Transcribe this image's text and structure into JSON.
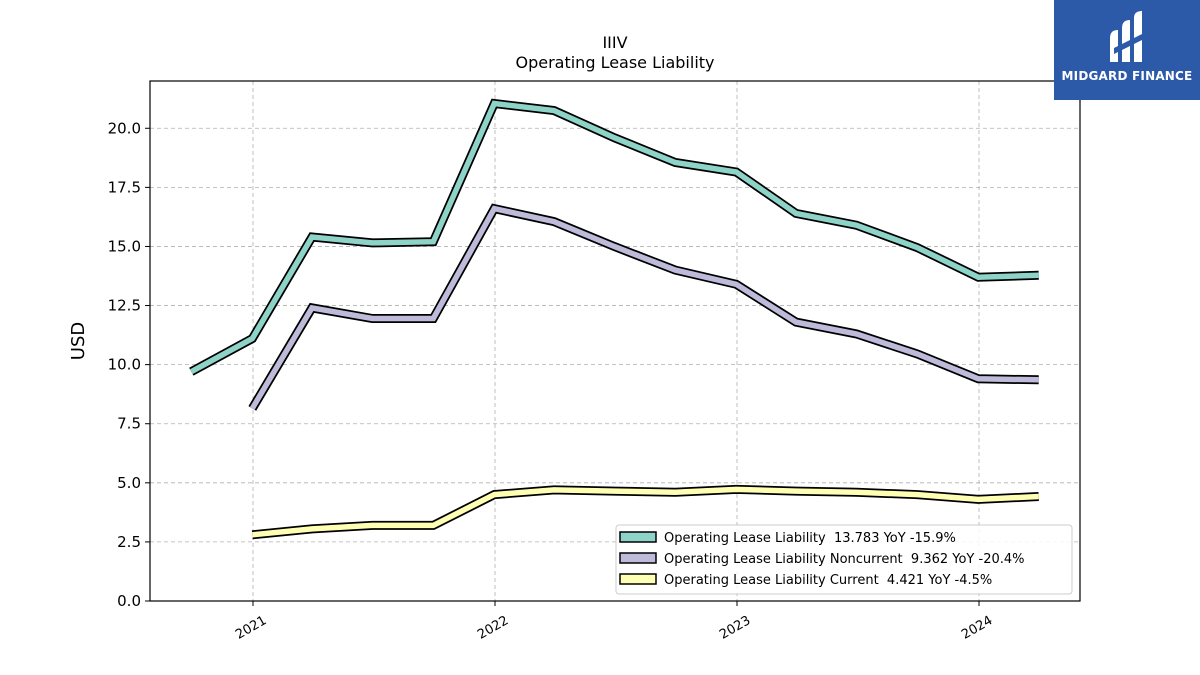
{
  "chart_data": {
    "type": "line",
    "title": "IIIV",
    "subtitle": "Operating Lease Liability",
    "ylabel": "USD",
    "xlabel": "",
    "ylim": [
      0,
      22
    ],
    "yticks": [
      "0.0",
      "2.5",
      "5.0",
      "7.5",
      "10.0",
      "12.5",
      "15.0",
      "17.5",
      "20.0"
    ],
    "xticks": [
      "2021",
      "2022",
      "2023",
      "2024"
    ],
    "grid": true,
    "legend_position": "lower-right",
    "series": [
      {
        "name": "Operating Lease Liability  13.783 YoY -15.9%",
        "color": "#8dd3c7",
        "x": [
          "2020-09-30",
          "2020-12-31",
          "2021-03-31",
          "2021-06-30",
          "2021-09-30",
          "2021-12-31",
          "2022-03-31",
          "2022-06-30",
          "2022-09-30",
          "2022-12-31",
          "2023-03-31",
          "2023-06-30",
          "2023-09-30",
          "2023-12-31",
          "2024-03-31"
        ],
        "values": [
          9.7,
          11.1,
          15.4,
          15.15,
          15.2,
          21.05,
          20.75,
          19.6,
          18.55,
          18.15,
          16.4,
          15.9,
          14.95,
          13.7,
          13.78
        ]
      },
      {
        "name": "Operating Lease Liability Noncurrent  9.362 YoY -20.4%",
        "color": "#bebada",
        "x": [
          "2020-12-31",
          "2021-03-31",
          "2021-06-30",
          "2021-09-30",
          "2021-12-31",
          "2022-03-31",
          "2022-06-30",
          "2022-09-30",
          "2022-12-31",
          "2023-03-31",
          "2023-06-30",
          "2023-09-30",
          "2023-12-31",
          "2024-03-31"
        ],
        "values": [
          8.15,
          12.4,
          11.95,
          11.95,
          16.6,
          16.05,
          15.0,
          14.0,
          13.4,
          11.8,
          11.3,
          10.45,
          9.4,
          9.36
        ]
      },
      {
        "name": "Operating Lease Liability Current  4.421 YoY -4.5%",
        "color": "#ffffb3",
        "x": [
          "2020-12-31",
          "2021-03-31",
          "2021-06-30",
          "2021-09-30",
          "2021-12-31",
          "2022-03-31",
          "2022-06-30",
          "2022-09-30",
          "2022-12-31",
          "2023-03-31",
          "2023-06-30",
          "2023-09-30",
          "2023-12-31",
          "2024-03-31"
        ],
        "values": [
          2.8,
          3.05,
          3.2,
          3.2,
          4.5,
          4.7,
          4.65,
          4.6,
          4.72,
          4.65,
          4.6,
          4.5,
          4.3,
          4.42
        ]
      }
    ]
  },
  "logo": {
    "text": "MIDGARD FINANCE",
    "color": "#2d5aa8"
  }
}
